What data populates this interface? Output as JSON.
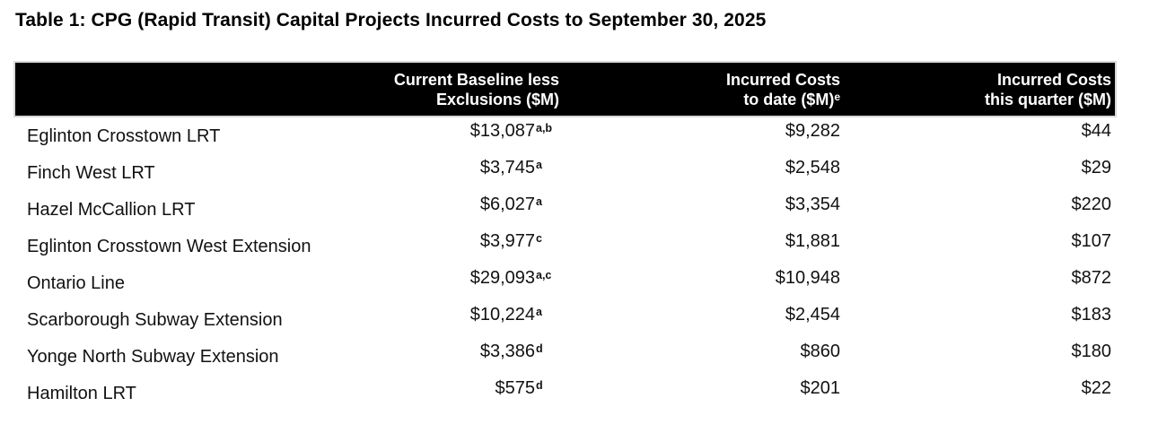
{
  "title": "Table 1: CPG (Rapid Transit) Capital Projects Incurred Costs to September 30, 2025",
  "table": {
    "header_bg": "#000000",
    "header_text_color": "#ffffff",
    "body_text_color": "#111111",
    "columns": [
      {
        "id": "project",
        "line1": "",
        "line2": "",
        "sup": ""
      },
      {
        "id": "baseline",
        "line1": "Current Baseline less",
        "line2": "Exclusions ($M)",
        "sup": ""
      },
      {
        "id": "to_date",
        "line1": "Incurred Costs",
        "line2": "to date ($M)",
        "sup": "e"
      },
      {
        "id": "quarter",
        "line1": "Incurred Costs",
        "line2": "this quarter ($M)",
        "sup": ""
      }
    ],
    "rows": [
      {
        "project": "Eglinton Crosstown LRT",
        "baseline": "$13,087",
        "baseline_sup": "a,b",
        "to_date": "$9,282",
        "quarter": "$44"
      },
      {
        "project": "Finch West LRT",
        "baseline": "$3,745",
        "baseline_sup": "a",
        "to_date": "$2,548",
        "quarter": "$29"
      },
      {
        "project": "Hazel McCallion LRT",
        "baseline": "$6,027",
        "baseline_sup": "a",
        "to_date": "$3,354",
        "quarter": "$220"
      },
      {
        "project": "Eglinton Crosstown West Extension",
        "baseline": "$3,977",
        "baseline_sup": "c",
        "to_date": "$1,881",
        "quarter": "$107"
      },
      {
        "project": "Ontario Line",
        "baseline": "$29,093",
        "baseline_sup": "a,c",
        "to_date": "$10,948",
        "quarter": "$872"
      },
      {
        "project": "Scarborough Subway Extension",
        "baseline": "$10,224",
        "baseline_sup": "a",
        "to_date": "$2,454",
        "quarter": "$183"
      },
      {
        "project": "Yonge North Subway Extension",
        "baseline": "$3,386",
        "baseline_sup": "d",
        "to_date": "$860",
        "quarter": "$180"
      },
      {
        "project": "Hamilton LRT",
        "baseline": "$575",
        "baseline_sup": "d",
        "to_date": "$201",
        "quarter": "$22"
      }
    ]
  }
}
